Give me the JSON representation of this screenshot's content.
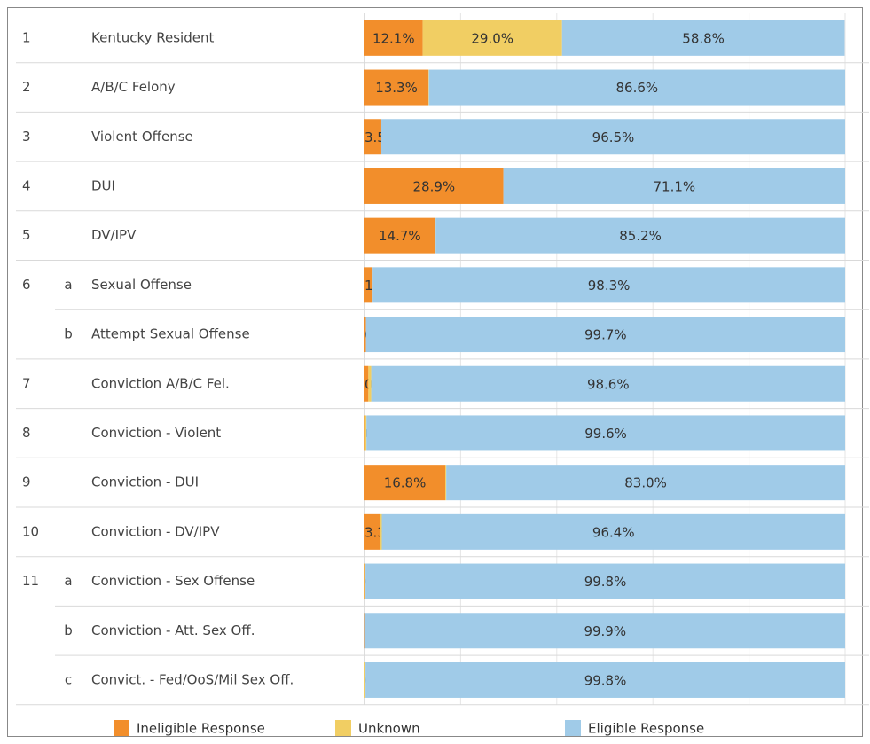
{
  "chart_data": {
    "type": "stacked-barh",
    "row_numbers": [
      "1",
      "2",
      "3",
      "4",
      "5",
      "6",
      null,
      "7",
      "8",
      "9",
      "10",
      "11",
      null,
      null
    ],
    "row_letters": [
      null,
      null,
      null,
      null,
      null,
      "a",
      "b",
      null,
      null,
      null,
      null,
      "a",
      "b",
      "c"
    ],
    "categories": [
      "Kentucky Resident",
      "A/B/C Felony",
      "Violent Offense",
      "DUI",
      "DV/IPV",
      "Sexual Offense",
      "Attempt Sexual Offense",
      "Conviction A/B/C Fel.",
      "Conviction - Violent",
      "Conviction - DUI",
      "Conviction - DV/IPV",
      "Conviction - Sex Offense",
      "Conviction - Att. Sex Off.",
      "Convict. - Fed/OoS/Mil Sex Off."
    ],
    "series": [
      {
        "name": "Ineligible Response",
        "color": "#f28e2b",
        "values": [
          12.1,
          13.3,
          3.5,
          28.9,
          14.7,
          1.7,
          0.3,
          0.8,
          0.1,
          16.8,
          3.3,
          0.1,
          0.1,
          0.0
        ],
        "value_labels": [
          "12.1%",
          "13.3%",
          "3.5%",
          "28.9%",
          "14.7%",
          "1.7%",
          "0.3%",
          "0.8%",
          "0.1%",
          "16.8%",
          "3.3%",
          "0.1%",
          null,
          "0.0%"
        ]
      },
      {
        "name": "Unknown",
        "color": "#f1ce63",
        "values": [
          29.0,
          0.1,
          0,
          0,
          0.1,
          0,
          0,
          0.6,
          0.3,
          0.2,
          0.3,
          0.1,
          0,
          0.2
        ],
        "value_labels": [
          "29.0%",
          null,
          null,
          null,
          null,
          null,
          null,
          null,
          null,
          null,
          null,
          null,
          null,
          null
        ]
      },
      {
        "name": "Eligible Response",
        "color": "#a0cbe8",
        "values": [
          58.8,
          86.6,
          96.5,
          71.1,
          85.2,
          98.3,
          99.7,
          98.6,
          99.6,
          83.0,
          96.4,
          99.8,
          99.9,
          99.8
        ],
        "value_labels": [
          "58.8%",
          "86.6%",
          "96.5%",
          "71.1%",
          "85.2%",
          "98.3%",
          "99.7%",
          "98.6%",
          "99.6%",
          "83.0%",
          "96.4%",
          "99.8%",
          "99.9%",
          "99.8%"
        ]
      }
    ],
    "xlim": [
      0,
      100
    ],
    "xticks": [
      0,
      20,
      40,
      60,
      80,
      100
    ],
    "grid": true
  }
}
